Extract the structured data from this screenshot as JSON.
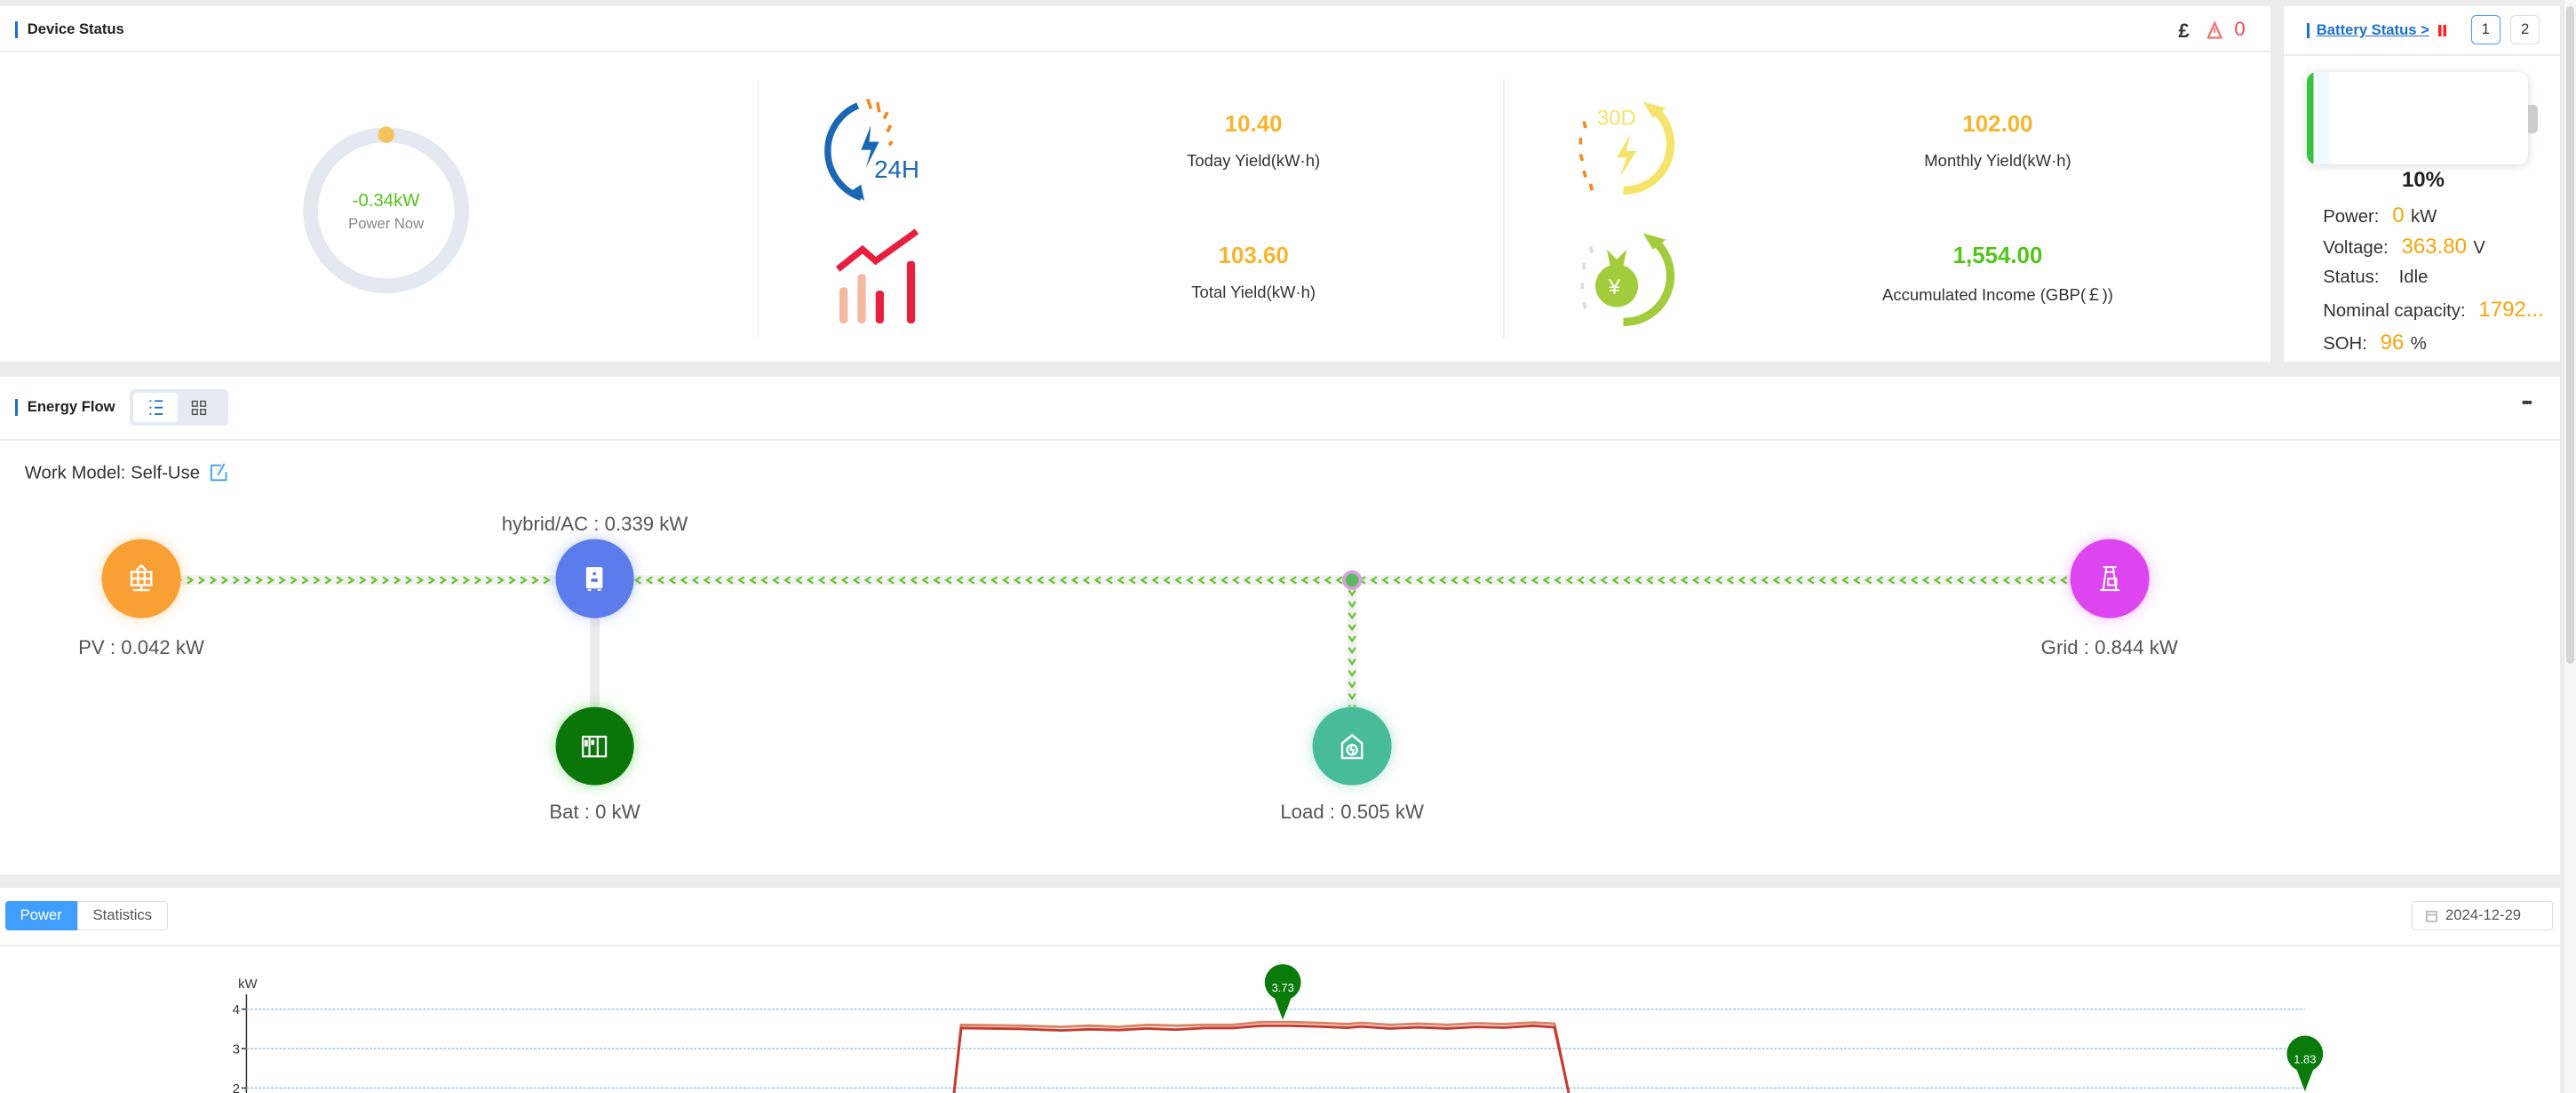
{
  "device_status": {
    "title": "Device Status",
    "currency_symbol": "£",
    "alarm_count": "0",
    "power_now": {
      "value": "-0.34kW",
      "label": "Power Now"
    },
    "stats": [
      {
        "icon": "24h-clock-icon",
        "value": "10.40",
        "label": "Today Yield(kW·h)",
        "color": "#f7b52c"
      },
      {
        "icon": "30-day-icon",
        "value": "102.00",
        "label": "Monthly Yield(kW·h)",
        "color": "#f7b52c"
      },
      {
        "icon": "rising-chart-icon",
        "value": "103.60",
        "label": "Total Yield(kW·h)",
        "color": "#f7b52c"
      },
      {
        "icon": "money-bag-icon",
        "value": "1,554.00",
        "label": "Accumulated Income (GBP(￡))",
        "color": "#52c41a"
      }
    ]
  },
  "battery": {
    "title": "Battery Status >",
    "pages": [
      "1",
      "2"
    ],
    "selected_page": "1",
    "soc_percent": 10,
    "soc_label": "10%",
    "rows": [
      {
        "label": "Power:",
        "value": "0",
        "unit": "kW"
      },
      {
        "label": "Voltage:",
        "value": "363.80",
        "unit": "V"
      },
      {
        "label": "Status:",
        "value": "Idle",
        "unit": ""
      },
      {
        "label": "Nominal capacity:",
        "value": "1792...",
        "unit": ""
      },
      {
        "label": "SOH:",
        "value": "96",
        "unit": "%"
      }
    ]
  },
  "energy_flow": {
    "title": "Energy Flow",
    "more": "•••",
    "work_model_label": "Work Model:",
    "work_model_value": "Self-Use",
    "nodes": {
      "pv": {
        "label": "PV : 0.042 kW",
        "color": "#f9a035"
      },
      "hybrid": {
        "label": "hybrid/AC : 0.339 kW",
        "color": "#5b7cea"
      },
      "bat": {
        "label": "Bat : 0 kW",
        "color": "#0a760a"
      },
      "load": {
        "label": "Load : 0.505 kW",
        "color": "#48bb9a"
      },
      "grid": {
        "label": "Grid : 0.844 kW",
        "color": "#dc45ef"
      }
    },
    "flow_color": "#66c22e"
  },
  "power_panel": {
    "tabs": [
      "Power",
      "Statistics"
    ],
    "active_tab": "Power",
    "date": "2024-12-29"
  },
  "chart_data": {
    "type": "line",
    "ylabel": "kW",
    "yticks": [
      "4",
      "3",
      "2"
    ],
    "y_tick_values": [
      4,
      3,
      2
    ],
    "grid": true,
    "x_samples": 288,
    "series": [
      {
        "color": "#d98466",
        "points": [
          [
            99,
            0
          ],
          [
            100,
            3.6
          ],
          [
            108,
            3.58
          ],
          [
            114,
            3.55
          ],
          [
            118,
            3.58
          ],
          [
            122,
            3.55
          ],
          [
            126,
            3.6
          ],
          [
            130,
            3.58
          ],
          [
            134,
            3.6
          ],
          [
            138,
            3.6
          ],
          [
            142,
            3.67
          ],
          [
            146,
            3.67
          ],
          [
            150,
            3.65
          ],
          [
            154,
            3.62
          ],
          [
            156,
            3.65
          ],
          [
            160,
            3.6
          ],
          [
            164,
            3.63
          ],
          [
            168,
            3.6
          ],
          [
            172,
            3.64
          ],
          [
            176,
            3.62
          ],
          [
            180,
            3.66
          ],
          [
            183,
            3.63
          ],
          [
            185,
            0
          ]
        ]
      },
      {
        "color": "#c43b30",
        "points": [
          [
            99,
            0
          ],
          [
            100,
            3.52
          ],
          [
            108,
            3.5
          ],
          [
            114,
            3.46
          ],
          [
            118,
            3.49
          ],
          [
            122,
            3.47
          ],
          [
            126,
            3.51
          ],
          [
            130,
            3.48
          ],
          [
            134,
            3.52
          ],
          [
            138,
            3.52
          ],
          [
            142,
            3.58
          ],
          [
            146,
            3.58
          ],
          [
            150,
            3.56
          ],
          [
            154,
            3.53
          ],
          [
            156,
            3.56
          ],
          [
            160,
            3.51
          ],
          [
            164,
            3.54
          ],
          [
            168,
            3.51
          ],
          [
            172,
            3.55
          ],
          [
            176,
            3.53
          ],
          [
            180,
            3.58
          ],
          [
            183,
            3.54
          ],
          [
            185,
            0
          ]
        ]
      }
    ],
    "mark_points": [
      {
        "x": 145,
        "y": 3.73,
        "label": "3.73",
        "color": "#0a7a0a"
      },
      {
        "x": 288,
        "y": 1.83,
        "label": "1.83",
        "color": "#0a7a0a"
      }
    ]
  }
}
